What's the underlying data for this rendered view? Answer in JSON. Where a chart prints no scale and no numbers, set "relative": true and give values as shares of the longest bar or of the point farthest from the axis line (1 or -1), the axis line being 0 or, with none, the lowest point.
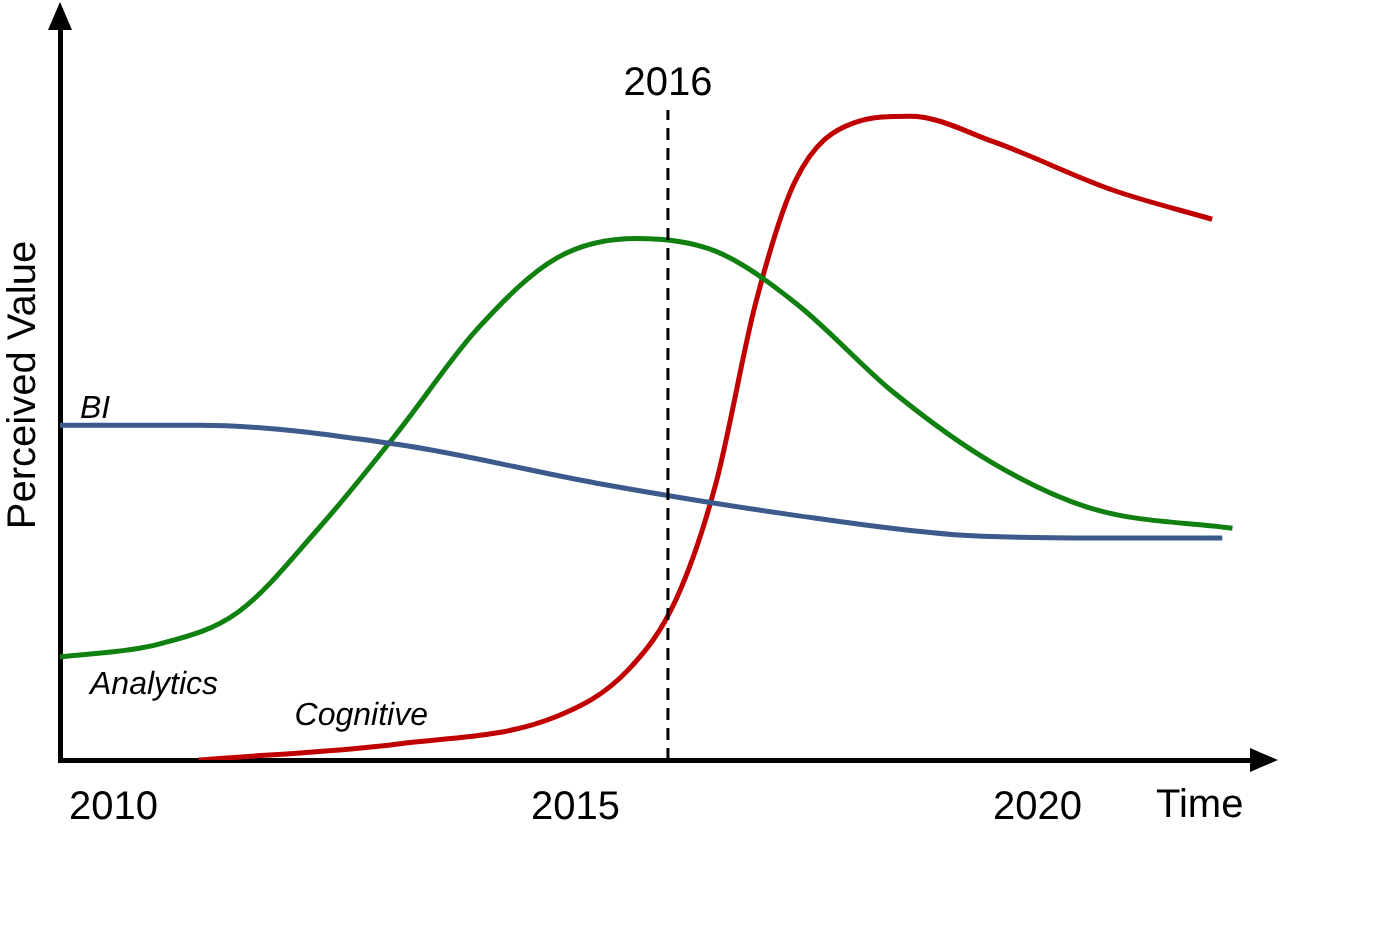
{
  "chart_data": {
    "type": "line",
    "relative": true,
    "xlabel": "Time",
    "ylabel": "Perceived Value",
    "xlim": [
      2009.42,
      2022.3
    ],
    "xticks": [
      2010,
      2015,
      2020
    ],
    "legend": false,
    "grid": false,
    "marker": "none",
    "line_style": "solid",
    "series": [
      {
        "name": "BI",
        "color": "#3c5a8c",
        "x": [
          2009.42,
          2010.92,
          2013.08,
          2015.23,
          2017.38,
          2019.1,
          2020.6,
          2022.0
        ],
        "values": [
          0.52,
          0.52,
          0.49,
          0.43,
          0.38,
          0.35,
          0.345,
          0.345
        ]
      },
      {
        "name": "Analytics",
        "color": "#108010",
        "x": [
          2009.42,
          2010.49,
          2011.35,
          2012.22,
          2013.08,
          2013.94,
          2014.8,
          2015.66,
          2016.52,
          2017.38,
          2018.45,
          2019.53,
          2020.6,
          2022.11
        ],
        "values": [
          0.16,
          0.18,
          0.23,
          0.36,
          0.51,
          0.67,
          0.78,
          0.81,
          0.79,
          0.71,
          0.57,
          0.46,
          0.39,
          0.36
        ]
      },
      {
        "name": "Cognitive",
        "color": "#c00000",
        "x": [
          2010.92,
          2013.08,
          2014.8,
          2015.57,
          2016.09,
          2016.52,
          2016.95,
          2017.38,
          2018.02,
          2018.62,
          2019.53,
          2020.82,
          2021.89
        ],
        "values": [
          0,
          0.025,
          0.068,
          0.14,
          0.25,
          0.43,
          0.71,
          0.9,
          0.99,
          1.0,
          0.96,
          0.885,
          0.84
        ]
      }
    ],
    "ref_lines": [
      {
        "axis": "x",
        "value": 2016,
        "label": "2016",
        "color": "#000000",
        "line_style": "dashed"
      }
    ]
  }
}
